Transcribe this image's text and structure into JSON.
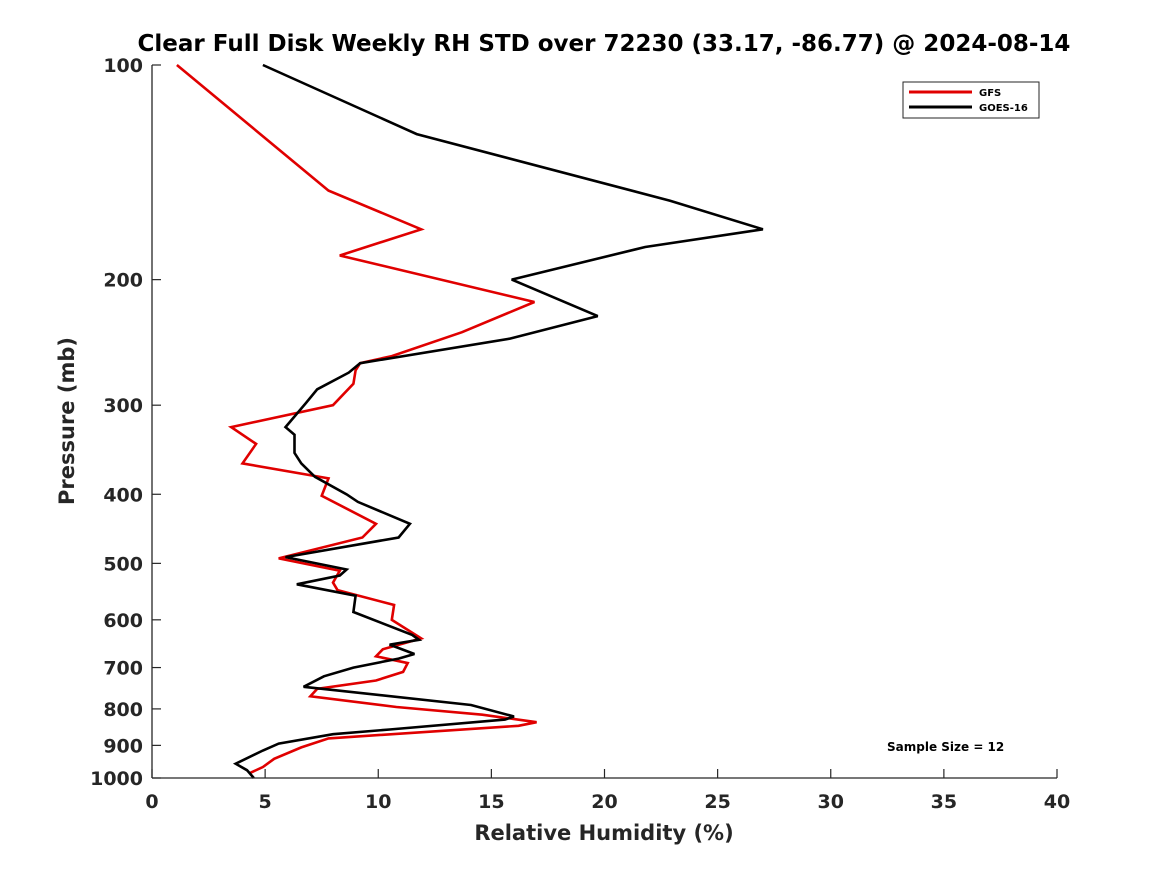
{
  "chart_data": {
    "type": "line",
    "title": "Clear Full Disk Weekly RH STD over 72230 (33.17, -86.77) @ 2024-08-14",
    "xlabel": "Relative Humidity (%)",
    "ylabel": "Pressure (mb)",
    "xlim": [
      0,
      40
    ],
    "ylim": [
      100,
      1000
    ],
    "yscale": "log",
    "xticks": [
      0,
      5,
      10,
      15,
      20,
      25,
      30,
      35,
      40
    ],
    "yticks": [
      100,
      200,
      300,
      400,
      500,
      600,
      700,
      800,
      900,
      1000
    ],
    "legend_position": "top-right",
    "annotation": "Sample Size = 12",
    "series": [
      {
        "name": "GFS",
        "color": "#e00000",
        "points": [
          [
            1.1,
            100
          ],
          [
            7.8,
            150
          ],
          [
            11.9,
            170
          ],
          [
            8.3,
            185
          ],
          [
            16.9,
            215
          ],
          [
            13.7,
            237
          ],
          [
            10.6,
            256
          ],
          [
            9.2,
            262
          ],
          [
            9.0,
            268
          ],
          [
            8.9,
            280
          ],
          [
            8.0,
            300
          ],
          [
            3.5,
            322
          ],
          [
            4.6,
            340
          ],
          [
            4.0,
            362
          ],
          [
            7.8,
            380
          ],
          [
            7.5,
            402
          ],
          [
            9.9,
            440
          ],
          [
            9.3,
            460
          ],
          [
            5.6,
            492
          ],
          [
            8.3,
            512
          ],
          [
            8.0,
            532
          ],
          [
            8.2,
            545
          ],
          [
            10.7,
            572
          ],
          [
            10.6,
            600
          ],
          [
            11.9,
            637
          ],
          [
            10.2,
            660
          ],
          [
            9.9,
            675
          ],
          [
            11.3,
            690
          ],
          [
            11.1,
            710
          ],
          [
            9.9,
            730
          ],
          [
            7.3,
            750
          ],
          [
            7.0,
            768
          ],
          [
            10.8,
            795
          ],
          [
            14.6,
            815
          ],
          [
            17.0,
            835
          ],
          [
            16.2,
            845
          ],
          [
            7.8,
            880
          ],
          [
            6.6,
            906
          ],
          [
            5.4,
            940
          ],
          [
            4.9,
            965
          ],
          [
            4.3,
            985
          ]
        ]
      },
      {
        "name": "GOES-16",
        "color": "#000000",
        "points": [
          [
            4.9,
            100
          ],
          [
            11.7,
            125
          ],
          [
            22.9,
            155
          ],
          [
            27.0,
            170
          ],
          [
            21.8,
            180
          ],
          [
            15.9,
            200
          ],
          [
            19.7,
            225
          ],
          [
            15.8,
            242
          ],
          [
            9.2,
            262
          ],
          [
            8.7,
            270
          ],
          [
            7.3,
            285
          ],
          [
            6.8,
            298
          ],
          [
            5.9,
            322
          ],
          [
            6.3,
            330
          ],
          [
            6.3,
            350
          ],
          [
            6.6,
            362
          ],
          [
            7.2,
            378
          ],
          [
            8.6,
            400
          ],
          [
            9.1,
            410
          ],
          [
            11.4,
            440
          ],
          [
            10.9,
            460
          ],
          [
            5.9,
            490
          ],
          [
            8.6,
            510
          ],
          [
            8.3,
            520
          ],
          [
            6.4,
            535
          ],
          [
            9.0,
            555
          ],
          [
            8.9,
            585
          ],
          [
            11.5,
            630
          ],
          [
            11.8,
            640
          ],
          [
            10.5,
            650
          ],
          [
            11.6,
            670
          ],
          [
            10.9,
            680
          ],
          [
            8.9,
            700
          ],
          [
            7.6,
            720
          ],
          [
            6.7,
            745
          ],
          [
            14.1,
            790
          ],
          [
            16.0,
            820
          ],
          [
            15.6,
            828
          ],
          [
            10.5,
            855
          ],
          [
            8.0,
            868
          ],
          [
            5.6,
            895
          ],
          [
            4.9,
            915
          ],
          [
            3.7,
            955
          ],
          [
            4.2,
            975
          ],
          [
            4.5,
            1000
          ]
        ]
      }
    ]
  }
}
